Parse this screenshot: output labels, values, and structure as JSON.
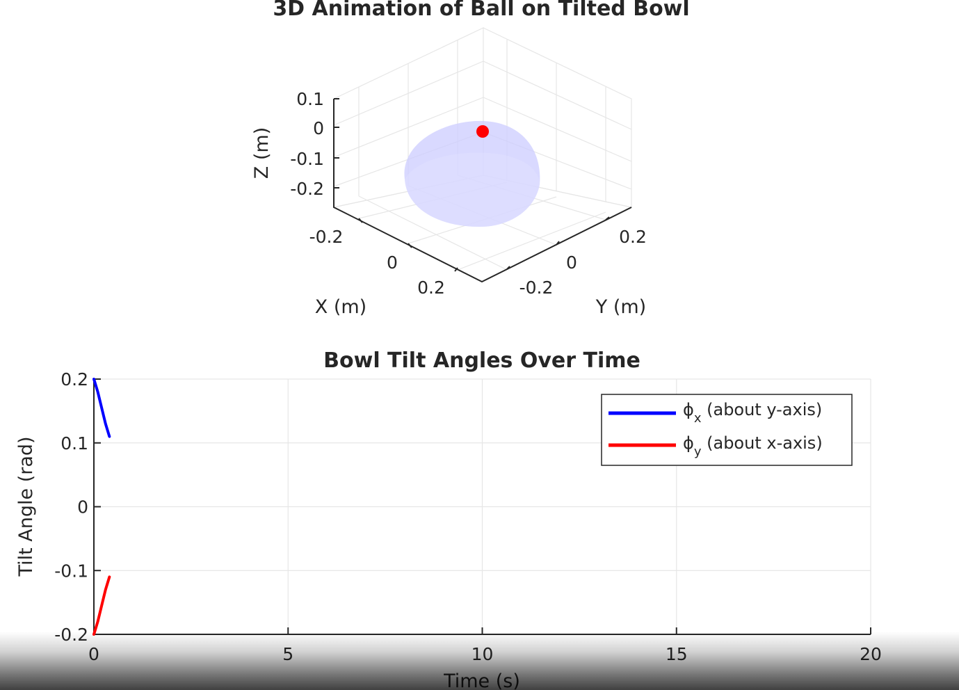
{
  "chart_data": [
    {
      "type": "surface3d",
      "title": "3D Animation of Ball on Tilted Bowl",
      "xlabel": "X (m)",
      "ylabel": "Y (m)",
      "zlabel": "Z (m)",
      "xticks": [
        "-0.2",
        "0",
        "0.2"
      ],
      "yticks": [
        "-0.2",
        "0",
        "0.2"
      ],
      "zticks": [
        "0.1",
        "0",
        "-0.1",
        "-0.2"
      ],
      "grid": true,
      "bowl_color": "#ccccff",
      "ball_color": "#ff0000"
    },
    {
      "type": "line",
      "title": "Bowl Tilt Angles Over Time",
      "xlabel": "Time (s)",
      "ylabel": "Tilt Angle (rad)",
      "xlim": [
        0,
        20
      ],
      "ylim": [
        -0.2,
        0.2
      ],
      "xticks": [
        "0",
        "5",
        "10",
        "15",
        "20"
      ],
      "yticks": [
        "0.2",
        "0.1",
        "0",
        "-0.1",
        "-0.2"
      ],
      "grid": true,
      "legend_position": "top-right",
      "series": [
        {
          "name": "ϕ",
          "sub": "x",
          "suffix": " (about y-axis)",
          "color": "#0000ff",
          "x": [
            0,
            0.1,
            0.2,
            0.3,
            0.4
          ],
          "y": [
            0.2,
            0.18,
            0.155,
            0.13,
            0.11
          ]
        },
        {
          "name": "ϕ",
          "sub": "y",
          "suffix": " (about x-axis)",
          "color": "#ff0000",
          "x": [
            0,
            0.1,
            0.2,
            0.3,
            0.4
          ],
          "y": [
            -0.2,
            -0.18,
            -0.155,
            -0.13,
            -0.11
          ]
        }
      ]
    }
  ]
}
